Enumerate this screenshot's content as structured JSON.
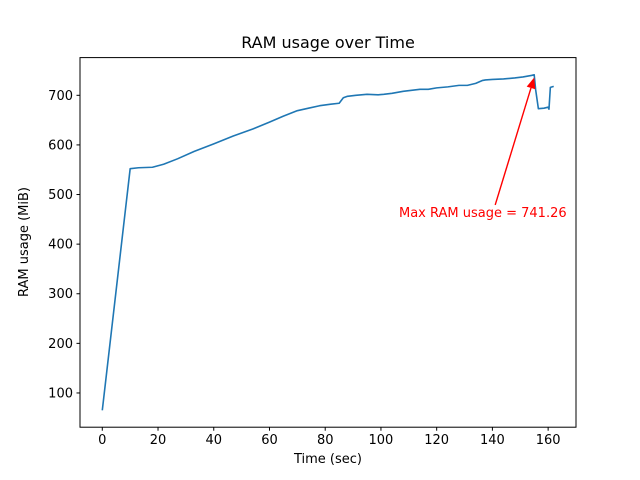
{
  "chart_data": {
    "type": "line",
    "title": "RAM usage over Time",
    "xlabel": "Time (sec)",
    "ylabel": "RAM usage (MiB)",
    "xlim": [
      -8,
      170
    ],
    "ylim": [
      31,
      776
    ],
    "xticks": [
      0,
      20,
      40,
      60,
      80,
      100,
      120,
      140,
      160
    ],
    "yticks": [
      100,
      200,
      300,
      400,
      500,
      600,
      700
    ],
    "grid": false,
    "legend": "none",
    "line_color": "#1f77b4",
    "axis_color": "#000000",
    "series": [
      {
        "name": "RAM usage",
        "x": [
          0,
          10,
          13,
          18,
          22,
          27,
          33,
          40,
          47,
          54,
          60,
          65,
          70,
          74,
          78,
          82,
          85,
          86.5,
          88,
          91,
          95,
          99,
          101,
          104,
          108,
          111,
          114,
          117,
          120,
          124,
          128,
          131,
          134,
          136.5,
          137.5,
          140,
          144,
          148,
          151,
          154,
          155,
          155.5,
          156.5,
          158.5,
          160,
          160.3,
          160.8,
          162
        ],
        "y": [
          65,
          552,
          554,
          555,
          561,
          572,
          587,
          602,
          618,
          632,
          646,
          658,
          669,
          674,
          679,
          682,
          684,
          695,
          698,
          700,
          702,
          701,
          702,
          704,
          708,
          710,
          712,
          712,
          715,
          717,
          720,
          720,
          724,
          730,
          731,
          732,
          733,
          735,
          737,
          740,
          741.26,
          712,
          673,
          674,
          676,
          672,
          716,
          718
        ]
      }
    ],
    "annotation": {
      "text": "Max RAM usage = 741.26",
      "color": "#ff0000",
      "text_xy": [
        107,
        455
      ],
      "arrow_start": [
        141,
        479
      ],
      "arrow_end": [
        155,
        736
      ]
    },
    "max_value": 741.26
  }
}
